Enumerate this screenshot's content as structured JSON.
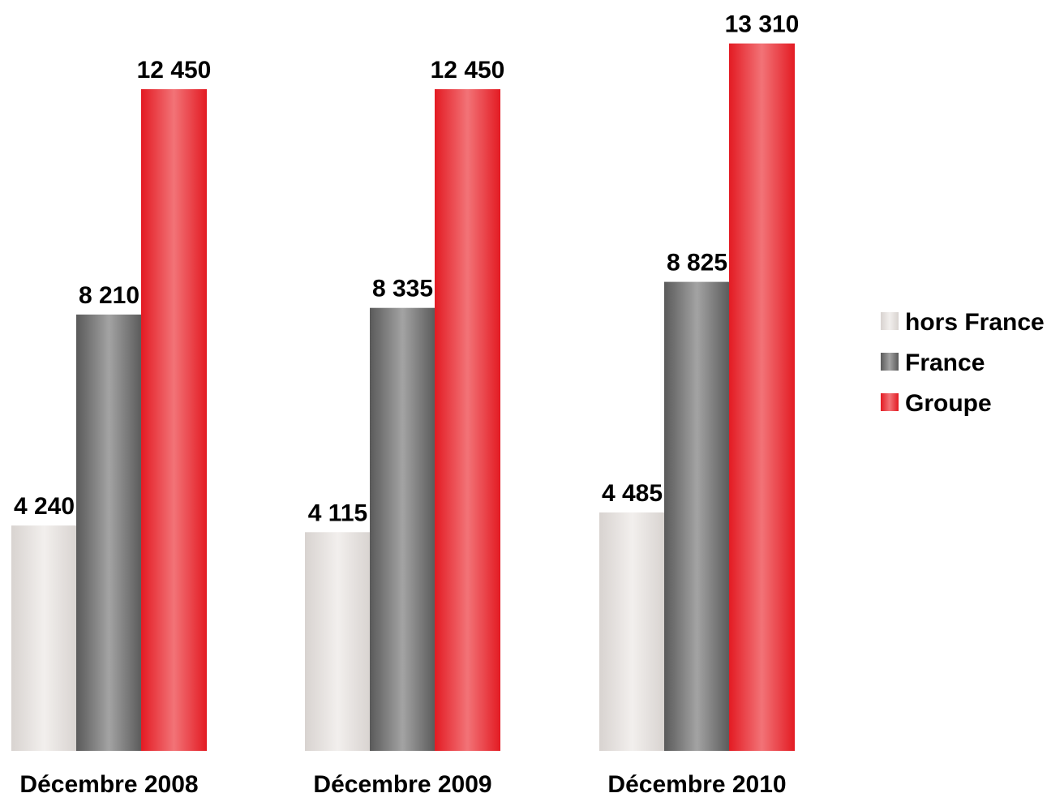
{
  "chart_data": {
    "type": "bar",
    "categories": [
      "Décembre 2008",
      "Décembre 2009",
      "Décembre 2010"
    ],
    "series": [
      {
        "name": "hors France",
        "values": [
          4240,
          4115,
          4485
        ],
        "labels": [
          "4 240",
          "4 115",
          "4 485"
        ],
        "colors": {
          "edge": "#d8d3d0",
          "highlight": "#f2efed"
        }
      },
      {
        "name": "France",
        "values": [
          8210,
          8335,
          8825
        ],
        "labels": [
          "8 210",
          "8 335",
          "8 825"
        ],
        "colors": {
          "edge": "#5a5a5a",
          "highlight": "#a3a3a3"
        }
      },
      {
        "name": "Groupe",
        "values": [
          12450,
          12450,
          13310
        ],
        "labels": [
          "12 450",
          "12 450",
          "13 310"
        ],
        "colors": {
          "edge": "#e31b23",
          "highlight": "#f27377"
        }
      }
    ],
    "ylim": [
      0,
      15000
    ],
    "grid": false,
    "legend_position": "right"
  }
}
